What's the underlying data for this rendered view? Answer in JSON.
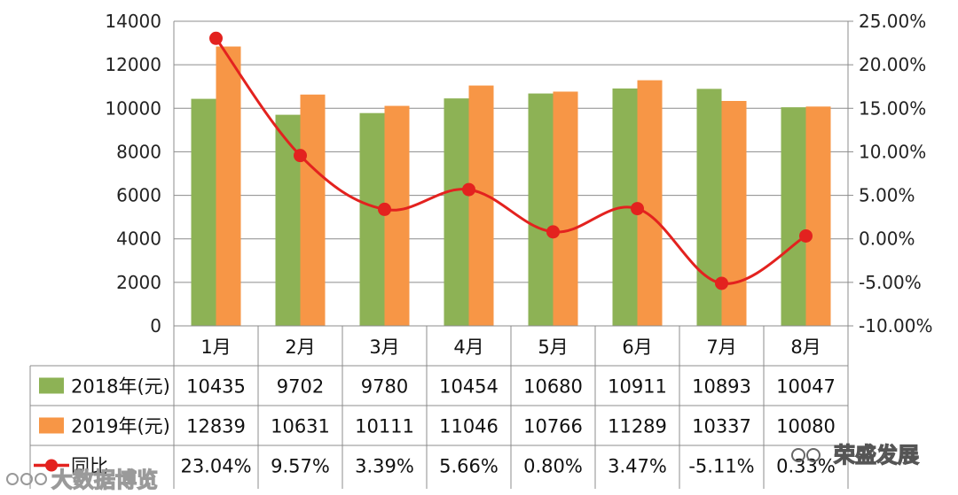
{
  "chart_data": {
    "type": "bar",
    "categories": [
      "1月",
      "2月",
      "3月",
      "4月",
      "5月",
      "6月",
      "7月",
      "8月"
    ],
    "series": [
      {
        "name": "2018年(元)",
        "type": "bar",
        "axis": "left",
        "color": "#8db255",
        "values": [
          10435,
          9702,
          9780,
          10454,
          10680,
          10911,
          10893,
          10047
        ],
        "labels": [
          "10435",
          "9702",
          "9780",
          "10454",
          "10680",
          "10911",
          "10893",
          "10047"
        ]
      },
      {
        "name": "2019年(元)",
        "type": "bar",
        "axis": "left",
        "color": "#f79646",
        "values": [
          12839,
          10631,
          10111,
          11046,
          10766,
          11289,
          10337,
          10080
        ],
        "labels": [
          "12839",
          "10631",
          "10111",
          "11046",
          "10766",
          "11289",
          "10337",
          "10080"
        ]
      },
      {
        "name": "同比",
        "type": "line",
        "axis": "right",
        "color": "#e3221f",
        "values": [
          23.04,
          9.57,
          3.39,
          5.66,
          0.8,
          3.47,
          -5.11,
          0.33
        ],
        "labels": [
          "23.04%",
          "9.57%",
          "3.39%",
          "5.66%",
          "0.80%",
          "3.47%",
          "-5.11%",
          "0.33%"
        ]
      }
    ],
    "ylim_left": [
      0,
      14000
    ],
    "yticks_left": [
      "0",
      "2000",
      "4000",
      "6000",
      "8000",
      "10000",
      "12000",
      "14000"
    ],
    "ylim_right": [
      -10,
      25
    ],
    "yticks_right": [
      "-10.00%",
      "-5.00%",
      "0.00%",
      "5.00%",
      "10.00%",
      "15.00%",
      "20.00%",
      "25.00%"
    ],
    "grid": true,
    "legend": "data-table"
  },
  "watermarks": {
    "bottom_left": "大数据博览",
    "bottom_right": "荣盛发展"
  }
}
